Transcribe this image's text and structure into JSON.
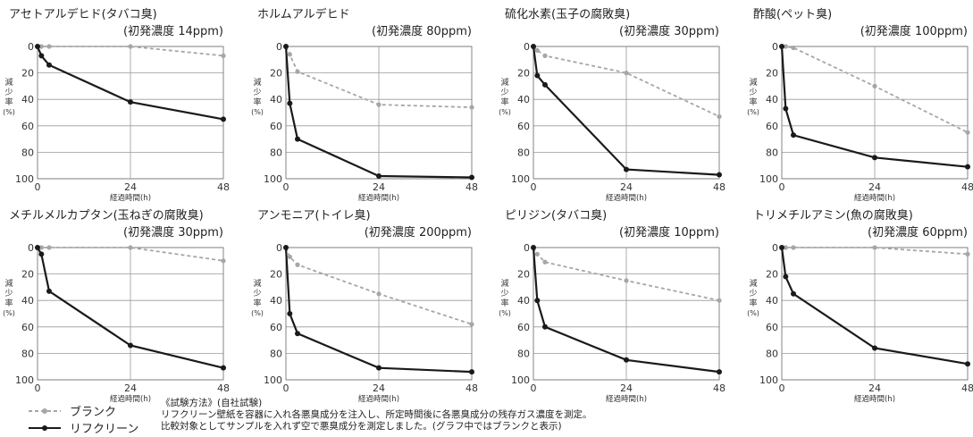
{
  "legend": {
    "blank": "ブランク",
    "refclean": "リフクリーン"
  },
  "method": {
    "heading": "《試験方法》(自社試験)",
    "line1": "リフクリーン壁紙を容器に入れ各悪臭成分を注入し、所定時間後に各悪臭成分の残存ガス濃度を測定。",
    "line2": "比較対象としてサンプルを入れず空で悪臭成分を測定しました。(グラフ中ではブランクと表示)"
  },
  "colors": {
    "blank": "#a6a6a6",
    "refclean": "#1a1a1a",
    "grid": "#9a9a9a"
  },
  "chart_data": [
    {
      "type": "line",
      "title": "アセトアルデヒド(タバコ臭)",
      "subtitle": "(初発濃度 14ppm)",
      "xlabel": "経過時間(h)",
      "ylabel": "減少率(%)",
      "xticks": [
        "0",
        "24",
        "48"
      ],
      "yticks": [
        "0",
        "20",
        "40",
        "60",
        "80",
        "100"
      ],
      "xlim": [
        0,
        48
      ],
      "ylim": [
        0,
        100
      ],
      "y_inverted": true,
      "series": [
        {
          "name": "ブランク",
          "x": [
            0,
            1,
            3,
            24,
            48
          ],
          "y": [
            0,
            0,
            0,
            0,
            7
          ]
        },
        {
          "name": "リフクリーン",
          "x": [
            0,
            1,
            3,
            24,
            48
          ],
          "y": [
            0,
            7,
            14,
            42,
            55
          ]
        }
      ]
    },
    {
      "type": "line",
      "title": "ホルムアルデヒド",
      "subtitle": "(初発濃度 80ppm)",
      "xlabel": "経過時間(h)",
      "ylabel": "減少率(%)",
      "xticks": [
        "0",
        "24",
        "48"
      ],
      "yticks": [
        "0",
        "20",
        "40",
        "60",
        "80",
        "100"
      ],
      "xlim": [
        0,
        48
      ],
      "ylim": [
        0,
        100
      ],
      "y_inverted": true,
      "series": [
        {
          "name": "ブランク",
          "x": [
            0,
            1,
            3,
            24,
            48
          ],
          "y": [
            0,
            6,
            19,
            44,
            46
          ]
        },
        {
          "name": "リフクリーン",
          "x": [
            0,
            1,
            3,
            24,
            48
          ],
          "y": [
            0,
            43,
            70,
            98,
            99
          ]
        }
      ]
    },
    {
      "type": "line",
      "title": "硫化水素(玉子の腐敗臭)",
      "subtitle": "(初発濃度 30ppm)",
      "xlabel": "経過時間(h)",
      "ylabel": "減少率(%)",
      "xticks": [
        "0",
        "24",
        "48"
      ],
      "yticks": [
        "0",
        "20",
        "40",
        "60",
        "80",
        "100"
      ],
      "xlim": [
        0,
        48
      ],
      "ylim": [
        0,
        100
      ],
      "y_inverted": true,
      "series": [
        {
          "name": "ブランク",
          "x": [
            0,
            1,
            3,
            24,
            48
          ],
          "y": [
            0,
            3,
            7,
            20,
            53
          ]
        },
        {
          "name": "リフクリーン",
          "x": [
            0,
            1,
            3,
            24,
            48
          ],
          "y": [
            0,
            22,
            29,
            93,
            97
          ]
        }
      ]
    },
    {
      "type": "line",
      "title": "酢酸(ペット臭)",
      "subtitle": "(初発濃度 100ppm)",
      "xlabel": "経過時間(h)",
      "ylabel": "減少率(%)",
      "xticks": [
        "0",
        "24",
        "48"
      ],
      "yticks": [
        "0",
        "20",
        "40",
        "60",
        "80",
        "100"
      ],
      "xlim": [
        0,
        48
      ],
      "ylim": [
        0,
        100
      ],
      "y_inverted": true,
      "series": [
        {
          "name": "ブランク",
          "x": [
            0,
            1,
            3,
            24,
            48
          ],
          "y": [
            0,
            0,
            1,
            30,
            65
          ]
        },
        {
          "name": "リフクリーン",
          "x": [
            0,
            1,
            3,
            24,
            48
          ],
          "y": [
            0,
            47,
            67,
            84,
            91
          ]
        }
      ]
    },
    {
      "type": "line",
      "title": "メチルメルカプタン(玉ねぎの腐敗臭)",
      "subtitle": "(初発濃度 30ppm)",
      "xlabel": "経過時間(h)",
      "ylabel": "減少率(%)",
      "xticks": [
        "0",
        "24",
        "48"
      ],
      "yticks": [
        "0",
        "20",
        "40",
        "60",
        "80",
        "100"
      ],
      "xlim": [
        0,
        48
      ],
      "ylim": [
        0,
        100
      ],
      "y_inverted": true,
      "series": [
        {
          "name": "ブランク",
          "x": [
            0,
            1,
            3,
            24,
            48
          ],
          "y": [
            0,
            0,
            0,
            0,
            10
          ]
        },
        {
          "name": "リフクリーン",
          "x": [
            0,
            1,
            3,
            24,
            48
          ],
          "y": [
            0,
            5,
            33,
            74,
            91
          ]
        }
      ]
    },
    {
      "type": "line",
      "title": "アンモニア(トイレ臭)",
      "subtitle": "(初発濃度 200ppm)",
      "xlabel": "経過時間(h)",
      "ylabel": "減少率(%)",
      "xticks": [
        "0",
        "24",
        "48"
      ],
      "yticks": [
        "0",
        "20",
        "40",
        "60",
        "80",
        "100"
      ],
      "xlim": [
        0,
        48
      ],
      "ylim": [
        0,
        100
      ],
      "y_inverted": true,
      "series": [
        {
          "name": "ブランク",
          "x": [
            0,
            1,
            3,
            24,
            48
          ],
          "y": [
            0,
            7,
            13,
            35,
            58
          ]
        },
        {
          "name": "リフクリーン",
          "x": [
            0,
            1,
            3,
            24,
            48
          ],
          "y": [
            0,
            50,
            65,
            91,
            94
          ]
        }
      ]
    },
    {
      "type": "line",
      "title": "ピリジン(タバコ臭)",
      "subtitle": "(初発濃度 10ppm)",
      "xlabel": "経過時間(h)",
      "ylabel": "減少率(%)",
      "xticks": [
        "0",
        "24",
        "48"
      ],
      "yticks": [
        "0",
        "20",
        "40",
        "60",
        "80",
        "100"
      ],
      "xlim": [
        0,
        48
      ],
      "ylim": [
        0,
        100
      ],
      "y_inverted": true,
      "series": [
        {
          "name": "ブランク",
          "x": [
            0,
            1,
            3,
            24,
            48
          ],
          "y": [
            0,
            5,
            11,
            25,
            40
          ]
        },
        {
          "name": "リフクリーン",
          "x": [
            0,
            1,
            3,
            24,
            48
          ],
          "y": [
            0,
            40,
            60,
            85,
            94
          ]
        }
      ]
    },
    {
      "type": "line",
      "title": "トリメチルアミン(魚の腐敗臭)",
      "subtitle": "(初発濃度 60ppm)",
      "xlabel": "経過時間(h)",
      "ylabel": "減少率(%)",
      "xticks": [
        "0",
        "24",
        "48"
      ],
      "yticks": [
        "0",
        "20",
        "40",
        "60",
        "80",
        "100"
      ],
      "xlim": [
        0,
        48
      ],
      "ylim": [
        0,
        100
      ],
      "y_inverted": true,
      "series": [
        {
          "name": "ブランク",
          "x": [
            0,
            1,
            3,
            24,
            48
          ],
          "y": [
            0,
            0,
            0,
            0,
            5
          ]
        },
        {
          "name": "リフクリーン",
          "x": [
            0,
            1,
            3,
            24,
            48
          ],
          "y": [
            0,
            22,
            35,
            76,
            88
          ]
        }
      ]
    }
  ]
}
